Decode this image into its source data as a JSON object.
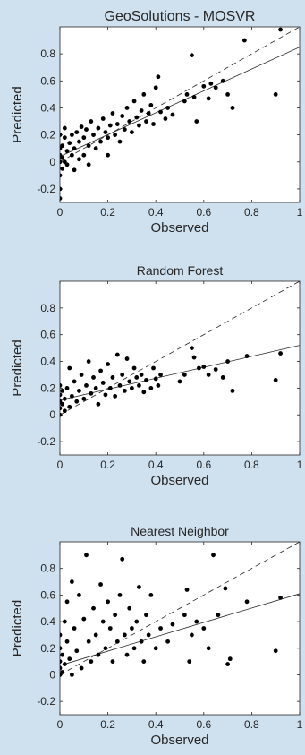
{
  "chart_data": [
    {
      "type": "scatter",
      "title": "GeoSolutions - MOSVR",
      "xlabel": "Observed",
      "ylabel": "Predicted",
      "xlim": [
        0,
        1
      ],
      "ylim": [
        -0.3,
        1.0
      ],
      "xticks": [
        0,
        0.2,
        0.4,
        0.6,
        0.8,
        1
      ],
      "xtick_labels": [
        "0",
        "0.2",
        "0.4",
        "0.6",
        "0.8",
        "1"
      ],
      "yticks": [
        -0.2,
        0,
        0.2,
        0.4,
        0.6,
        0.8
      ],
      "ytick_labels": [
        "-0.2",
        "0",
        "0.2",
        "0.4",
        "0.6",
        "0.8"
      ],
      "grid": false,
      "reference_line": {
        "style": "dashed",
        "x": [
          0,
          1
        ],
        "y": [
          0,
          1
        ]
      },
      "fit_line": {
        "style": "solid",
        "x": [
          0,
          1
        ],
        "y": [
          0.04,
          0.85
        ]
      },
      "points": [
        [
          0.0,
          -0.27
        ],
        [
          0.0,
          -0.2
        ],
        [
          0.0,
          -0.1
        ],
        [
          0.0,
          0.0
        ],
        [
          0.0,
          0.05
        ],
        [
          0.0,
          0.1
        ],
        [
          0.0,
          0.2
        ],
        [
          0.01,
          -0.05
        ],
        [
          0.01,
          0.03
        ],
        [
          0.01,
          0.12
        ],
        [
          0.02,
          0.0
        ],
        [
          0.02,
          0.18
        ],
        [
          0.02,
          0.25
        ],
        [
          0.03,
          0.08
        ],
        [
          0.03,
          -0.02
        ],
        [
          0.04,
          0.14
        ],
        [
          0.05,
          0.05
        ],
        [
          0.05,
          0.2
        ],
        [
          0.06,
          0.1
        ],
        [
          0.06,
          -0.06
        ],
        [
          0.07,
          0.22
        ],
        [
          0.08,
          0.02
        ],
        [
          0.08,
          0.15
        ],
        [
          0.09,
          0.26
        ],
        [
          0.1,
          0.05
        ],
        [
          0.1,
          0.18
        ],
        [
          0.11,
          0.24
        ],
        [
          0.12,
          -0.02
        ],
        [
          0.12,
          0.12
        ],
        [
          0.13,
          0.3
        ],
        [
          0.14,
          0.2
        ],
        [
          0.15,
          0.1
        ],
        [
          0.16,
          0.25
        ],
        [
          0.17,
          0.15
        ],
        [
          0.18,
          0.32
        ],
        [
          0.19,
          0.22
        ],
        [
          0.2,
          0.18
        ],
        [
          0.2,
          0.05
        ],
        [
          0.21,
          0.27
        ],
        [
          0.22,
          0.36
        ],
        [
          0.23,
          0.2
        ],
        [
          0.24,
          0.28
        ],
        [
          0.25,
          0.15
        ],
        [
          0.26,
          0.34
        ],
        [
          0.27,
          0.24
        ],
        [
          0.28,
          0.4
        ],
        [
          0.29,
          0.3
        ],
        [
          0.3,
          0.22
        ],
        [
          0.31,
          0.45
        ],
        [
          0.32,
          0.33
        ],
        [
          0.33,
          0.27
        ],
        [
          0.34,
          0.38
        ],
        [
          0.35,
          0.5
        ],
        [
          0.36,
          0.3
        ],
        [
          0.37,
          0.36
        ],
        [
          0.38,
          0.42
        ],
        [
          0.39,
          0.28
        ],
        [
          0.4,
          0.55
        ],
        [
          0.41,
          0.63
        ],
        [
          0.42,
          0.37
        ],
        [
          0.44,
          0.32
        ],
        [
          0.45,
          0.4
        ],
        [
          0.47,
          0.35
        ],
        [
          0.52,
          0.45
        ],
        [
          0.53,
          0.5
        ],
        [
          0.55,
          0.79
        ],
        [
          0.56,
          0.48
        ],
        [
          0.57,
          0.3
        ],
        [
          0.6,
          0.56
        ],
        [
          0.62,
          0.47
        ],
        [
          0.63,
          0.58
        ],
        [
          0.65,
          0.55
        ],
        [
          0.68,
          0.6
        ],
        [
          0.7,
          0.5
        ],
        [
          0.72,
          0.4
        ],
        [
          0.77,
          0.9
        ],
        [
          0.9,
          0.5
        ],
        [
          0.92,
          0.98
        ]
      ]
    },
    {
      "type": "scatter",
      "title": "Random Forest",
      "xlabel": "Observed",
      "ylabel": "Predicted",
      "xlim": [
        0,
        1
      ],
      "ylim": [
        -0.3,
        1.0
      ],
      "xticks": [
        0,
        0.2,
        0.4,
        0.6,
        0.8,
        1
      ],
      "xtick_labels": [
        "0",
        "0.2",
        "0.4",
        "0.6",
        "0.8",
        "1"
      ],
      "yticks": [
        -0.2,
        0,
        0.2,
        0.4,
        0.6,
        0.8
      ],
      "ytick_labels": [
        "-0.2",
        "0",
        "0.2",
        "0.4",
        "0.6",
        "0.8"
      ],
      "grid": false,
      "reference_line": {
        "style": "dashed",
        "x": [
          0,
          1
        ],
        "y": [
          0,
          1
        ]
      },
      "fit_line": {
        "style": "solid",
        "x": [
          0,
          1
        ],
        "y": [
          0.11,
          0.52
        ]
      },
      "points": [
        [
          0.0,
          0.0
        ],
        [
          0.0,
          0.05
        ],
        [
          0.0,
          0.1
        ],
        [
          0.0,
          0.15
        ],
        [
          0.0,
          0.22
        ],
        [
          0.01,
          0.08
        ],
        [
          0.01,
          0.18
        ],
        [
          0.02,
          0.12
        ],
        [
          0.02,
          0.03
        ],
        [
          0.03,
          0.2
        ],
        [
          0.04,
          0.06
        ],
        [
          0.04,
          0.35
        ],
        [
          0.05,
          0.14
        ],
        [
          0.06,
          0.25
        ],
        [
          0.07,
          0.1
        ],
        [
          0.08,
          0.18
        ],
        [
          0.09,
          0.3
        ],
        [
          0.1,
          0.12
        ],
        [
          0.11,
          0.22
        ],
        [
          0.12,
          0.4
        ],
        [
          0.13,
          0.16
        ],
        [
          0.14,
          0.28
        ],
        [
          0.15,
          0.2
        ],
        [
          0.16,
          0.08
        ],
        [
          0.17,
          0.33
        ],
        [
          0.18,
          0.24
        ],
        [
          0.19,
          0.15
        ],
        [
          0.2,
          0.38
        ],
        [
          0.21,
          0.2
        ],
        [
          0.22,
          0.28
        ],
        [
          0.23,
          0.14
        ],
        [
          0.24,
          0.45
        ],
        [
          0.25,
          0.22
        ],
        [
          0.26,
          0.3
        ],
        [
          0.27,
          0.18
        ],
        [
          0.28,
          0.42
        ],
        [
          0.29,
          0.25
        ],
        [
          0.3,
          0.2
        ],
        [
          0.31,
          0.35
        ],
        [
          0.32,
          0.28
        ],
        [
          0.33,
          0.22
        ],
        [
          0.34,
          0.3
        ],
        [
          0.35,
          0.17
        ],
        [
          0.36,
          0.26
        ],
        [
          0.38,
          0.2
        ],
        [
          0.39,
          0.35
        ],
        [
          0.4,
          0.27
        ],
        [
          0.41,
          0.22
        ],
        [
          0.42,
          0.3
        ],
        [
          0.5,
          0.25
        ],
        [
          0.52,
          0.3
        ],
        [
          0.55,
          0.5
        ],
        [
          0.56,
          0.43
        ],
        [
          0.58,
          0.35
        ],
        [
          0.6,
          0.36
        ],
        [
          0.62,
          0.3
        ],
        [
          0.65,
          0.34
        ],
        [
          0.68,
          0.28
        ],
        [
          0.7,
          0.4
        ],
        [
          0.72,
          0.18
        ],
        [
          0.78,
          0.44
        ],
        [
          0.9,
          0.26
        ],
        [
          0.92,
          0.46
        ]
      ]
    },
    {
      "type": "scatter",
      "title": "Nearest Neighbor",
      "xlabel": "Observed",
      "ylabel": "Predicted",
      "xlim": [
        0,
        1
      ],
      "ylim": [
        -0.3,
        1.0
      ],
      "xticks": [
        0,
        0.2,
        0.4,
        0.6,
        0.8,
        1
      ],
      "xtick_labels": [
        "0",
        "0.2",
        "0.4",
        "0.6",
        "0.8",
        "1"
      ],
      "yticks": [
        -0.2,
        0,
        0.2,
        0.4,
        0.6,
        0.8
      ],
      "ytick_labels": [
        "-0.2",
        "0",
        "0.2",
        "0.4",
        "0.6",
        "0.8"
      ],
      "grid": false,
      "reference_line": {
        "style": "dashed",
        "x": [
          0,
          1
        ],
        "y": [
          0,
          1
        ]
      },
      "fit_line": {
        "style": "solid",
        "x": [
          0,
          1
        ],
        "y": [
          0.07,
          0.61
        ]
      },
      "points": [
        [
          0.0,
          0.0
        ],
        [
          0.0,
          0.05
        ],
        [
          0.0,
          0.1
        ],
        [
          0.0,
          0.2
        ],
        [
          0.0,
          0.3
        ],
        [
          0.01,
          0.02
        ],
        [
          0.01,
          0.15
        ],
        [
          0.02,
          0.4
        ],
        [
          0.02,
          0.08
        ],
        [
          0.03,
          0.25
        ],
        [
          0.03,
          0.55
        ],
        [
          0.04,
          0.12
        ],
        [
          0.05,
          0.7
        ],
        [
          0.05,
          0.0
        ],
        [
          0.06,
          0.35
        ],
        [
          0.07,
          0.18
        ],
        [
          0.08,
          0.6
        ],
        [
          0.09,
          0.05
        ],
        [
          0.1,
          0.42
        ],
        [
          0.11,
          0.9
        ],
        [
          0.12,
          0.25
        ],
        [
          0.13,
          0.1
        ],
        [
          0.14,
          0.5
        ],
        [
          0.15,
          0.3
        ],
        [
          0.16,
          0.15
        ],
        [
          0.17,
          0.68
        ],
        [
          0.18,
          0.4
        ],
        [
          0.19,
          0.2
        ],
        [
          0.2,
          0.55
        ],
        [
          0.21,
          0.35
        ],
        [
          0.22,
          0.1
        ],
        [
          0.23,
          0.45
        ],
        [
          0.24,
          0.25
        ],
        [
          0.25,
          0.6
        ],
        [
          0.26,
          0.87
        ],
        [
          0.27,
          0.3
        ],
        [
          0.28,
          0.15
        ],
        [
          0.29,
          0.5
        ],
        [
          0.3,
          0.35
        ],
        [
          0.31,
          0.2
        ],
        [
          0.32,
          0.4
        ],
        [
          0.33,
          0.66
        ],
        [
          0.34,
          0.25
        ],
        [
          0.35,
          0.1
        ],
        [
          0.36,
          0.45
        ],
        [
          0.37,
          0.3
        ],
        [
          0.38,
          0.6
        ],
        [
          0.4,
          0.2
        ],
        [
          0.42,
          0.35
        ],
        [
          0.45,
          0.25
        ],
        [
          0.47,
          0.38
        ],
        [
          0.52,
          0.45
        ],
        [
          0.53,
          0.64
        ],
        [
          0.54,
          0.1
        ],
        [
          0.55,
          0.3
        ],
        [
          0.57,
          0.4
        ],
        [
          0.6,
          0.35
        ],
        [
          0.62,
          0.2
        ],
        [
          0.64,
          0.9
        ],
        [
          0.66,
          0.45
        ],
        [
          0.69,
          0.65
        ],
        [
          0.7,
          0.08
        ],
        [
          0.71,
          0.12
        ],
        [
          0.78,
          0.55
        ],
        [
          0.9,
          0.18
        ],
        [
          0.92,
          0.58
        ]
      ]
    }
  ]
}
